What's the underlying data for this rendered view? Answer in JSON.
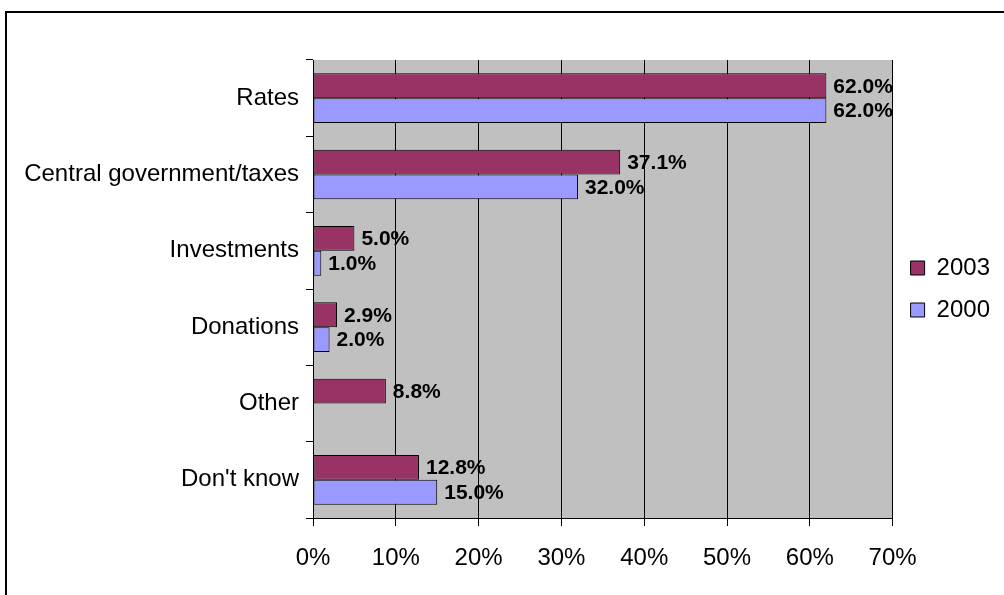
{
  "chart_data": {
    "type": "bar",
    "orientation": "horizontal",
    "categories": [
      "Rates",
      "Central government/taxes",
      "Investments",
      "Donations",
      "Other",
      "Don't know"
    ],
    "series": [
      {
        "name": "2003",
        "color": "#993366",
        "values": [
          62.0,
          37.1,
          5.0,
          2.9,
          8.8,
          12.8
        ],
        "value_labels": [
          "62.0%",
          "37.1%",
          "5.0%",
          "2.9%",
          "8.8%",
          "12.8%"
        ]
      },
      {
        "name": "2000",
        "color": "#9999ff",
        "values": [
          62.0,
          32.0,
          1.0,
          2.0,
          null,
          15.0
        ],
        "value_labels": [
          "62.0%",
          "32.0%",
          "1.0%",
          "2.0%",
          null,
          "15.0%"
        ]
      }
    ],
    "xlim": [
      0,
      70
    ],
    "xticks": [
      {
        "value": 0,
        "label": "0%"
      },
      {
        "value": 10,
        "label": "10%"
      },
      {
        "value": 20,
        "label": "20%"
      },
      {
        "value": 30,
        "label": "30%"
      },
      {
        "value": 40,
        "label": "40%"
      },
      {
        "value": 50,
        "label": "50%"
      },
      {
        "value": 60,
        "label": "60%"
      },
      {
        "value": 70,
        "label": "70%"
      }
    ],
    "grid": "x",
    "legend": "right"
  }
}
